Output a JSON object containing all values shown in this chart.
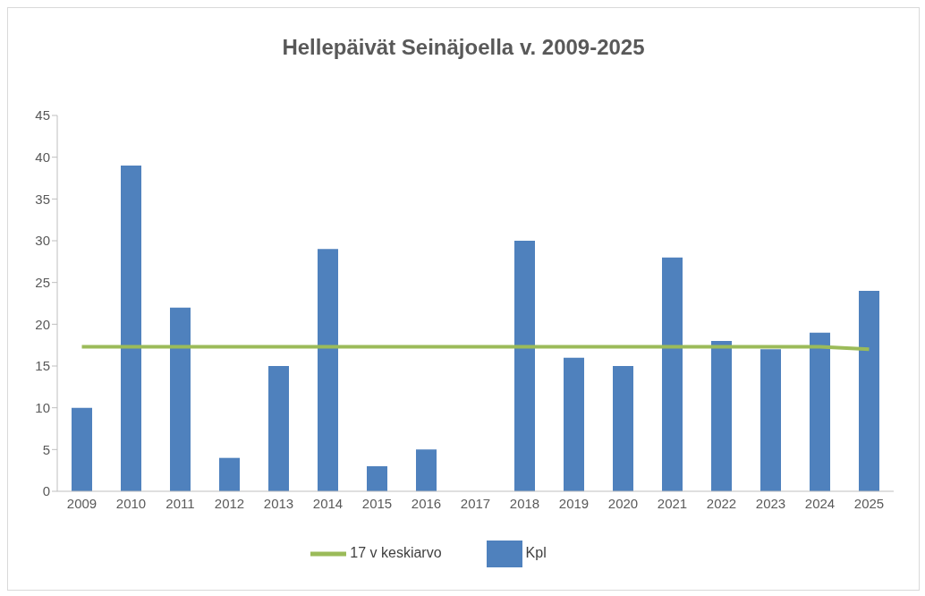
{
  "chart_data": {
    "type": "bar",
    "title": "Hellepäivät Seinäjoella v. 2009-2025",
    "categories": [
      "2009",
      "2010",
      "2011",
      "2012",
      "2013",
      "2014",
      "2015",
      "2016",
      "2017",
      "2018",
      "2019",
      "2020",
      "2021",
      "2022",
      "2023",
      "2024",
      "2025"
    ],
    "series": [
      {
        "name": "Kpl",
        "color": "#4f81bd",
        "values": [
          10,
          39,
          22,
          4,
          15,
          29,
          3,
          5,
          0,
          30,
          16,
          15,
          28,
          18,
          17,
          19,
          24
        ]
      },
      {
        "name": "17 v keskiarvo",
        "type": "line",
        "color": "#9bbb59",
        "values": [
          17.3,
          17.3,
          17.3,
          17.3,
          17.3,
          17.3,
          17.3,
          17.3,
          17.3,
          17.3,
          17.3,
          17.3,
          17.3,
          17.3,
          17.3,
          17.3,
          17.0
        ]
      }
    ],
    "ylim": [
      0,
      45
    ],
    "yticks": [
      0,
      5,
      10,
      15,
      20,
      25,
      30,
      35,
      40,
      45
    ],
    "grid": false,
    "legend": "bottom"
  }
}
